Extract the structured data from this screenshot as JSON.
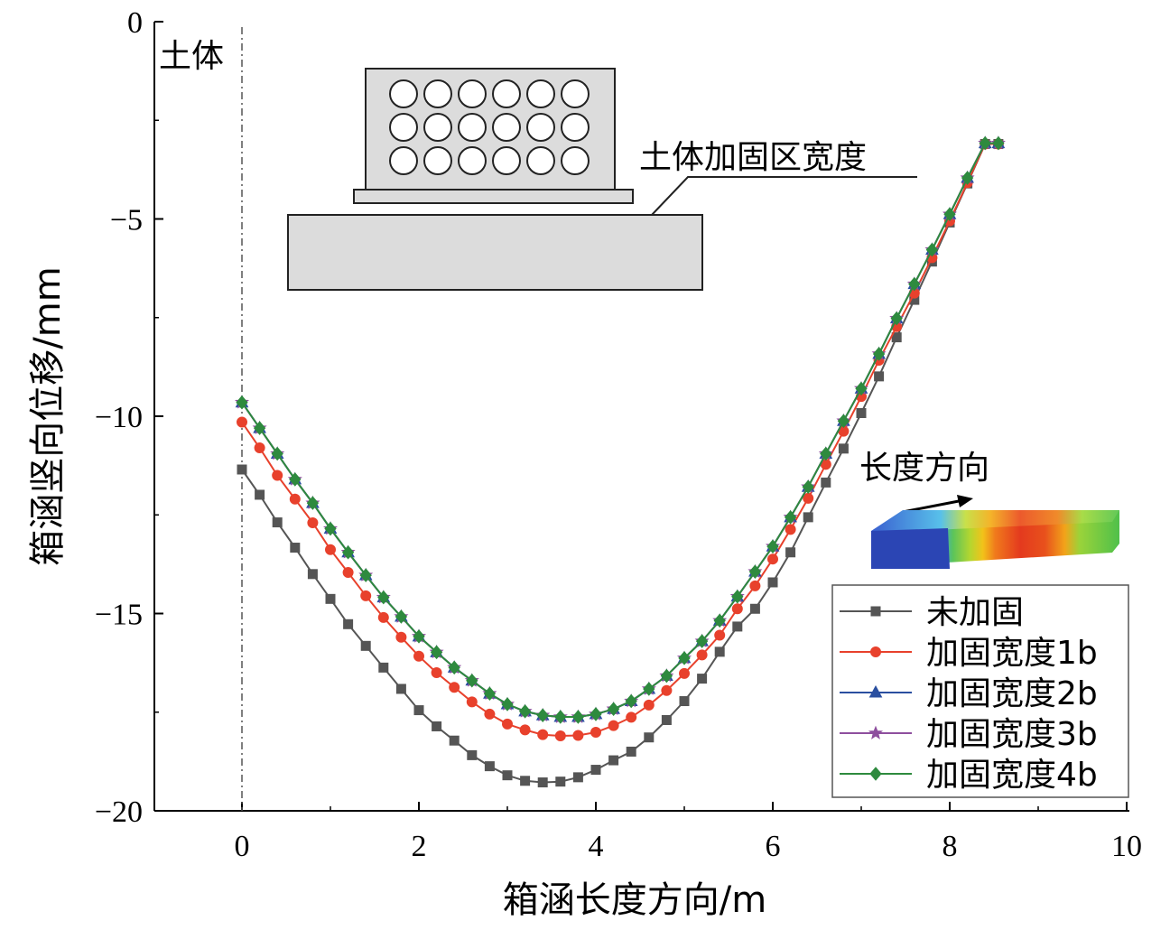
{
  "chart_data": {
    "type": "line",
    "xlabel": "箱涵长度方向/m",
    "ylabel": "箱涵竖向位移/mm",
    "xlim": [
      -1,
      10
    ],
    "ylim": [
      -20,
      0
    ],
    "xticks": [
      0,
      2,
      4,
      6,
      8,
      10
    ],
    "yticks": [
      0,
      -5,
      -10,
      -15,
      -20
    ],
    "grid": false,
    "legend_position": "bottom-right",
    "annotations": {
      "soil_label": "土体",
      "reinforce_label": "土体加固区宽度",
      "direction_label": "长度方向"
    },
    "x": [
      0,
      0.2,
      0.4,
      0.6,
      0.8,
      1.0,
      1.2,
      1.4,
      1.6,
      1.8,
      2.0,
      2.2,
      2.4,
      2.6,
      2.8,
      3.0,
      3.2,
      3.4,
      3.6,
      3.8,
      4.0,
      4.2,
      4.4,
      4.6,
      4.8,
      5.0,
      5.2,
      5.4,
      5.6,
      5.8,
      6.0,
      6.2,
      6.4,
      6.6,
      6.8,
      7.0,
      7.2,
      7.4,
      7.6,
      7.8,
      8.0,
      8.2,
      8.4,
      8.6
    ],
    "series": [
      {
        "name": "未加固",
        "color": "#555555",
        "marker": "square",
        "values": [
          -11.35,
          -11.99,
          -12.69,
          -13.33,
          -14.0,
          -14.63,
          -15.27,
          -15.82,
          -16.37,
          -16.91,
          -17.45,
          -17.86,
          -18.22,
          -18.59,
          -18.87,
          -19.1,
          -19.24,
          -19.28,
          -19.26,
          -19.15,
          -18.96,
          -18.72,
          -18.5,
          -18.14,
          -17.7,
          -17.22,
          -16.65,
          -15.97,
          -15.33,
          -14.88,
          -14.21,
          -13.45,
          -12.56,
          -11.68,
          -10.82,
          -9.92,
          -8.99,
          -8.0,
          -7.05,
          -6.08,
          -5.09,
          -4.1,
          -3.1,
          -3.1
        ]
      },
      {
        "name": "加固宽度1b",
        "color": "#e8412c",
        "marker": "circle",
        "values": [
          -10.15,
          -10.8,
          -11.5,
          -12.1,
          -12.7,
          -13.38,
          -13.96,
          -14.55,
          -15.1,
          -15.6,
          -16.08,
          -16.5,
          -16.87,
          -17.24,
          -17.55,
          -17.8,
          -17.95,
          -18.07,
          -18.1,
          -18.09,
          -18.01,
          -17.84,
          -17.63,
          -17.32,
          -16.95,
          -16.52,
          -16.05,
          -15.55,
          -14.88,
          -14.3,
          -13.62,
          -12.87,
          -12.08,
          -11.22,
          -10.38,
          -9.5,
          -8.58,
          -7.73,
          -6.88,
          -5.98,
          -5.05,
          -4.08,
          -3.1,
          -3.1
        ]
      },
      {
        "name": "加固宽度2b",
        "color": "#2a4fa0",
        "marker": "triangle",
        "values": [
          -9.65,
          -10.3,
          -10.95,
          -11.6,
          -12.2,
          -12.85,
          -13.45,
          -14.03,
          -14.59,
          -15.08,
          -15.58,
          -15.98,
          -16.37,
          -16.7,
          -17.03,
          -17.3,
          -17.48,
          -17.58,
          -17.62,
          -17.62,
          -17.55,
          -17.42,
          -17.22,
          -16.91,
          -16.58,
          -16.13,
          -15.7,
          -15.18,
          -14.57,
          -13.94,
          -13.3,
          -12.56,
          -11.79,
          -10.95,
          -10.12,
          -9.3,
          -8.42,
          -7.52,
          -6.65,
          -5.78,
          -4.88,
          -3.96,
          -3.08,
          -3.08
        ]
      },
      {
        "name": "加固宽度3b",
        "color": "#8e4f9e",
        "marker": "star",
        "values": [
          -9.65,
          -10.3,
          -10.95,
          -11.6,
          -12.2,
          -12.85,
          -13.45,
          -14.03,
          -14.59,
          -15.08,
          -15.58,
          -15.98,
          -16.37,
          -16.7,
          -17.03,
          -17.3,
          -17.48,
          -17.58,
          -17.62,
          -17.62,
          -17.55,
          -17.42,
          -17.22,
          -16.91,
          -16.58,
          -16.13,
          -15.7,
          -15.18,
          -14.57,
          -13.94,
          -13.3,
          -12.56,
          -11.79,
          -10.95,
          -10.12,
          -9.3,
          -8.42,
          -7.52,
          -6.65,
          -5.78,
          -4.88,
          -3.96,
          -3.08,
          -3.08
        ]
      },
      {
        "name": "加固宽度4b",
        "color": "#2e8a3e",
        "marker": "diamond",
        "values": [
          -9.65,
          -10.3,
          -10.95,
          -11.6,
          -12.2,
          -12.85,
          -13.45,
          -14.03,
          -14.59,
          -15.08,
          -15.58,
          -15.98,
          -16.37,
          -16.7,
          -17.03,
          -17.3,
          -17.48,
          -17.58,
          -17.62,
          -17.62,
          -17.55,
          -17.42,
          -17.22,
          -16.91,
          -16.58,
          -16.13,
          -15.7,
          -15.18,
          -14.57,
          -13.94,
          -13.3,
          -12.56,
          -11.79,
          -10.95,
          -10.12,
          -9.3,
          -8.42,
          -7.52,
          -6.65,
          -5.78,
          -4.88,
          -3.96,
          -3.08,
          -3.08
        ]
      }
    ]
  }
}
